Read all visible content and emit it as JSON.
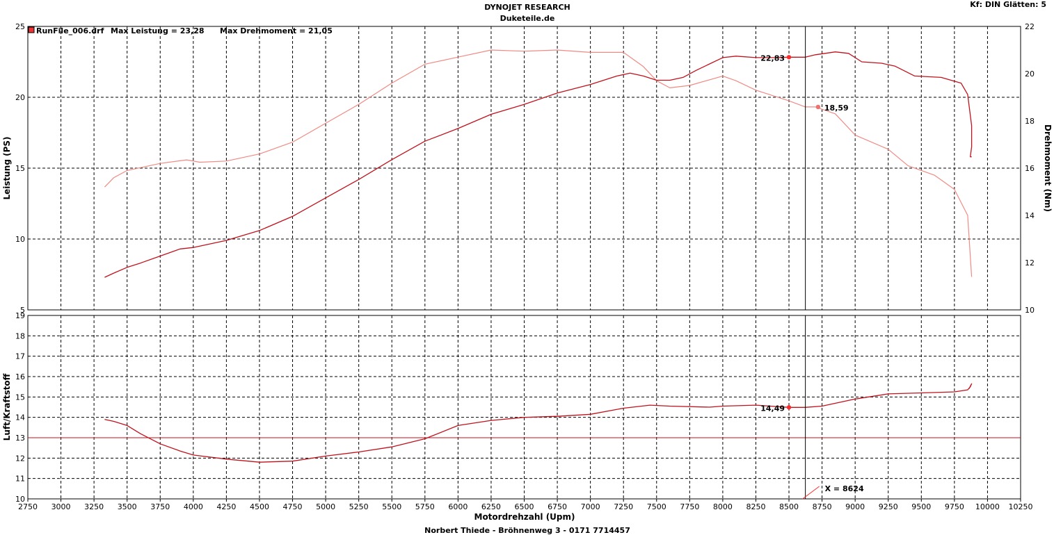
{
  "header": {
    "title": "DYNOJET RESEARCH",
    "subtitle": "Duketeile.de",
    "settings": "Kf: DIN  Glätten: 5",
    "footer": "Norbert Thiede - Bröhnenweg 3 - 0171 7714457"
  },
  "legend": {
    "run_file": "RunFile_006.drf",
    "max_power_text": "Max Leistung = 23,28",
    "max_torque_text": "Max Drehmoment = 21,05"
  },
  "colors": {
    "power": "#c0121c",
    "torque": "#f08a84",
    "afr": "#c0121c",
    "afr_reference": "#c0121c",
    "marker": "#ff2a2a",
    "grid": "#000000"
  },
  "cursor": {
    "x_label": "X = 8624",
    "x": 8624,
    "power_label": "22,83",
    "power_value": 22.83,
    "torque_label": "18,59",
    "torque_value": 18.59,
    "afr_label": "14,49",
    "afr_value": 14.49
  },
  "chart_data": [
    {
      "type": "line",
      "title": "",
      "xlabel": "",
      "ylabel": "Leistung (PS)",
      "y2label": "Drehmoment (Nm)",
      "xlim": [
        2750,
        10250
      ],
      "ylim": [
        5,
        25
      ],
      "y2lim": [
        10,
        22
      ],
      "xticks": [
        2750,
        3000,
        3250,
        3500,
        3750,
        4000,
        4250,
        4500,
        4750,
        5000,
        5250,
        5500,
        5750,
        6000,
        6250,
        6500,
        6750,
        7000,
        7250,
        7500,
        7750,
        8000,
        8250,
        8500,
        8750,
        9000,
        9250,
        9500,
        9750,
        10000,
        10250
      ],
      "yticks": [
        5,
        10,
        15,
        20,
        25
      ],
      "y2ticks": [
        10,
        12,
        14,
        16,
        18,
        20,
        22
      ],
      "grid": true,
      "series": [
        {
          "name": "Leistung",
          "axis": "left",
          "x": [
            3330,
            3400,
            3500,
            3600,
            3750,
            3900,
            4000,
            4250,
            4500,
            4750,
            5000,
            5250,
            5500,
            5750,
            6000,
            6250,
            6500,
            6750,
            7000,
            7200,
            7300,
            7400,
            7500,
            7600,
            7700,
            7800,
            8000,
            8100,
            8250,
            8400,
            8500,
            8624,
            8700,
            8850,
            8950,
            9050,
            9200,
            9300,
            9450,
            9650,
            9800,
            9850,
            9880,
            9880,
            9870,
            9880
          ],
          "y": [
            7.3,
            7.6,
            8.0,
            8.3,
            8.8,
            9.3,
            9.4,
            9.9,
            10.6,
            11.6,
            12.9,
            14.2,
            15.6,
            16.9,
            17.8,
            18.8,
            19.5,
            20.3,
            20.9,
            21.5,
            21.7,
            21.5,
            21.2,
            21.2,
            21.4,
            21.9,
            22.8,
            22.9,
            22.8,
            22.8,
            22.83,
            22.83,
            23.0,
            23.2,
            23.1,
            22.5,
            22.4,
            22.2,
            21.5,
            21.4,
            21.0,
            20.2,
            18.0,
            16.5,
            15.8,
            15.8
          ]
        },
        {
          "name": "Drehmoment",
          "axis": "right",
          "x": [
            3330,
            3400,
            3500,
            3750,
            3950,
            4050,
            4250,
            4500,
            4750,
            5000,
            5250,
            5500,
            5750,
            6000,
            6250,
            6500,
            6750,
            7000,
            7250,
            7400,
            7500,
            7600,
            7750,
            8000,
            8100,
            8250,
            8500,
            8624,
            8700,
            8850,
            9000,
            9250,
            9400,
            9600,
            9750,
            9850,
            9880
          ],
          "y": [
            15.2,
            15.6,
            15.9,
            16.2,
            16.35,
            16.25,
            16.3,
            16.6,
            17.1,
            17.9,
            18.7,
            19.6,
            20.4,
            20.7,
            21.0,
            20.95,
            21.0,
            20.9,
            20.9,
            20.3,
            19.7,
            19.4,
            19.5,
            19.9,
            19.7,
            19.3,
            18.85,
            18.59,
            18.59,
            18.3,
            17.4,
            16.8,
            16.1,
            15.7,
            15.1,
            14.0,
            11.4
          ]
        }
      ]
    },
    {
      "type": "line",
      "title": "",
      "xlabel": "Motordrehzahl (Upm)",
      "ylabel": "Luft/Kraftstoff",
      "xlim": [
        2750,
        10250
      ],
      "ylim": [
        10,
        19
      ],
      "yticks": [
        10,
        11,
        12,
        13,
        14,
        15,
        16,
        17,
        18,
        19
      ],
      "grid": true,
      "reference_line": 13,
      "series": [
        {
          "name": "Luft/Kraftstoff",
          "axis": "left",
          "x": [
            3330,
            3400,
            3500,
            3600,
            3750,
            3900,
            4000,
            4250,
            4500,
            4750,
            5000,
            5250,
            5500,
            5750,
            6000,
            6250,
            6500,
            6750,
            7000,
            7250,
            7450,
            7600,
            7900,
            8000,
            8250,
            8500,
            8624,
            8750,
            9000,
            9250,
            9500,
            9750,
            9850,
            9870,
            9880,
            9860
          ],
          "y": [
            13.9,
            13.8,
            13.6,
            13.2,
            12.7,
            12.35,
            12.15,
            11.95,
            11.8,
            11.85,
            12.1,
            12.3,
            12.55,
            12.95,
            13.6,
            13.85,
            14.0,
            14.05,
            14.15,
            14.45,
            14.6,
            14.55,
            14.5,
            14.55,
            14.6,
            14.49,
            14.49,
            14.55,
            14.9,
            15.15,
            15.2,
            15.25,
            15.35,
            15.5,
            15.65,
            15.4
          ]
        }
      ]
    }
  ]
}
